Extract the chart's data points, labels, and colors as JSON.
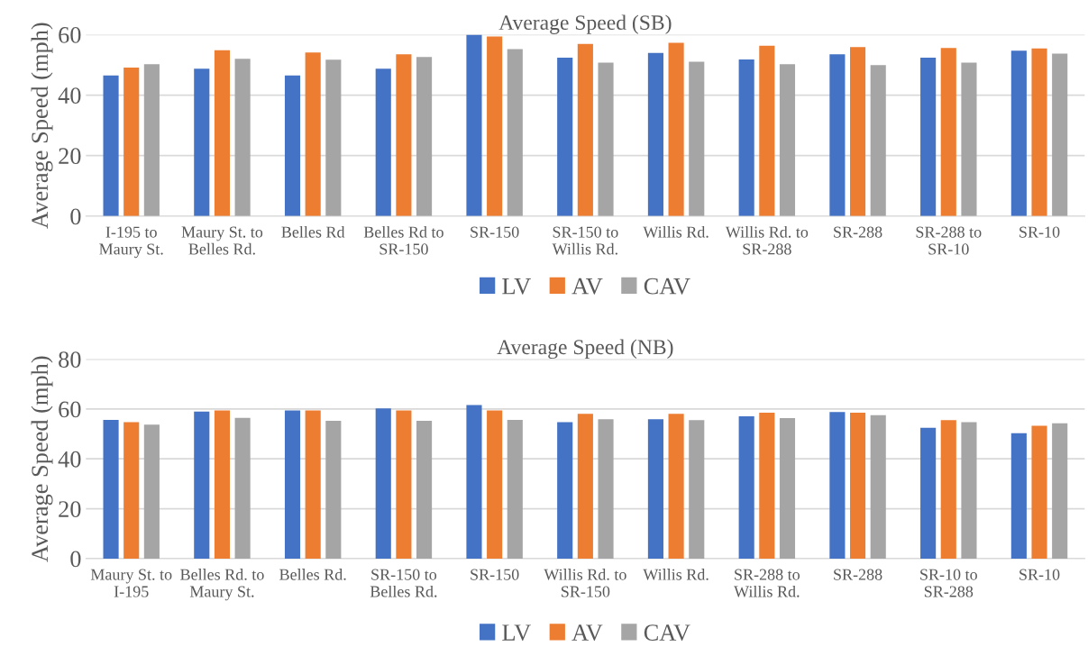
{
  "chart_data": [
    {
      "type": "bar",
      "title": "Average Speed (SB)",
      "ylabel": "Average Speed (mph)",
      "categories": [
        "I-195 to\nMaury St.",
        "Maury St. to\nBelles Rd.",
        "Belles Rd",
        "Belles Rd to\nSR-150",
        "SR-150",
        "SR-150 to\nWillis Rd.",
        "Willis Rd.",
        "Willis Rd. to\nSR-288",
        "SR-288",
        "SR-288 to\nSR-10",
        "SR-10"
      ],
      "series": [
        {
          "name": "LV",
          "color": "#4472c4",
          "values": [
            46.5,
            48.7,
            46.5,
            48.7,
            60,
            52.4,
            53.9,
            51.8,
            53.5,
            52.4,
            54.7
          ]
        },
        {
          "name": "AV",
          "color": "#ed7d31",
          "values": [
            49.1,
            54.8,
            54.1,
            53.5,
            59.4,
            56.9,
            57.3,
            56.3,
            55.9,
            55.6,
            55.4
          ]
        },
        {
          "name": "CAV",
          "color": "#a5a5a5",
          "values": [
            50.2,
            52.0,
            51.7,
            52.6,
            55.2,
            50.7,
            51.0,
            50.2,
            49.9,
            50.7,
            53.7
          ]
        }
      ],
      "ylim": [
        0,
        60
      ],
      "yticks": [
        0,
        20,
        40,
        60
      ],
      "grid": "y",
      "legend": "bottom"
    },
    {
      "type": "bar",
      "title": "Average Speed (NB)",
      "ylabel": "Average Speed (mph)",
      "categories": [
        "Maury St. to\nI-195",
        "Belles Rd. to\nMaury St.",
        "Belles Rd.",
        "SR-150 to\nBelles Rd.",
        "SR-150",
        "Willis Rd. to\nSR-150",
        "Willis Rd.",
        "SR-288 to\nWillis Rd.",
        "SR-288",
        "SR-10 to\nSR-288",
        "SR-10"
      ],
      "series": [
        {
          "name": "LV",
          "color": "#4472c4",
          "values": [
            55.6,
            59.0,
            59.4,
            60.2,
            61.6,
            54.7,
            55.9,
            57.1,
            58.8,
            52.5,
            50.3
          ]
        },
        {
          "name": "AV",
          "color": "#ed7d31",
          "values": [
            54.7,
            59.4,
            59.4,
            59.4,
            59.4,
            58.1,
            58.1,
            58.5,
            58.5,
            55.5,
            53.3
          ]
        },
        {
          "name": "CAV",
          "color": "#a5a5a5",
          "values": [
            53.7,
            56.4,
            55.3,
            55.3,
            55.6,
            55.9,
            55.5,
            56.3,
            57.5,
            54.7,
            54.3
          ]
        }
      ],
      "ylim": [
        0,
        80
      ],
      "yticks": [
        0,
        20,
        40,
        60,
        80
      ],
      "grid": "y",
      "legend": "bottom"
    }
  ]
}
